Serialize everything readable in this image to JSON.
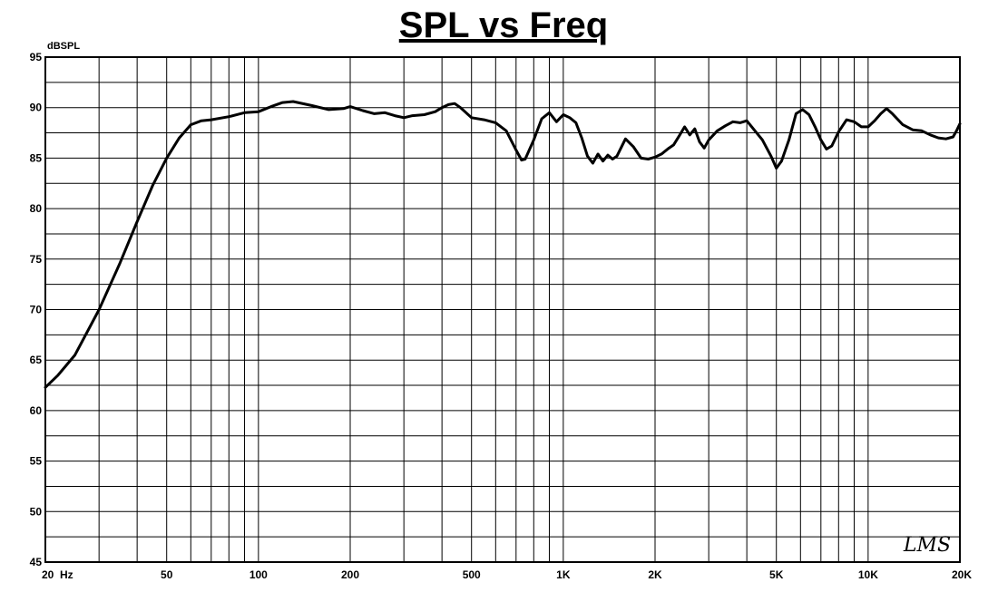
{
  "chart_data": {
    "type": "line",
    "title": "SPL vs Freq",
    "ylabel": "dBSPL",
    "xlabel": "",
    "x_scale": "log",
    "xlim": [
      20,
      20000
    ],
    "ylim": [
      45,
      95
    ],
    "grid": true,
    "x_tick_labels": [
      {
        "value": 20,
        "label": "20  Hz"
      },
      {
        "value": 50,
        "label": "50"
      },
      {
        "value": 100,
        "label": "100"
      },
      {
        "value": 200,
        "label": "200"
      },
      {
        "value": 500,
        "label": "500"
      },
      {
        "value": 1000,
        "label": "1K"
      },
      {
        "value": 2000,
        "label": "2K"
      },
      {
        "value": 5000,
        "label": "5K"
      },
      {
        "value": 10000,
        "label": "10K"
      },
      {
        "value": 20000,
        "label": "20K"
      }
    ],
    "y_ticks": [
      95,
      90,
      85,
      80,
      75,
      70,
      65,
      60,
      55,
      50,
      45
    ],
    "watermark": "LMS",
    "series": [
      {
        "color": "#000000",
        "x": [
          20,
          22,
          25,
          30,
          35,
          40,
          45,
          50,
          55,
          60,
          65,
          70,
          80,
          90,
          100,
          110,
          120,
          130,
          150,
          170,
          190,
          200,
          220,
          240,
          260,
          280,
          300,
          320,
          350,
          380,
          400,
          420,
          440,
          460,
          500,
          550,
          600,
          650,
          700,
          730,
          750,
          800,
          850,
          900,
          950,
          1000,
          1050,
          1100,
          1150,
          1200,
          1250,
          1300,
          1350,
          1400,
          1450,
          1500,
          1600,
          1700,
          1800,
          1900,
          2000,
          2100,
          2200,
          2300,
          2400,
          2500,
          2600,
          2700,
          2800,
          2900,
          3000,
          3200,
          3400,
          3600,
          3800,
          4000,
          4200,
          4500,
          4800,
          5000,
          5200,
          5500,
          5800,
          6100,
          6400,
          6700,
          7000,
          7300,
          7600,
          8000,
          8500,
          9000,
          9500,
          10000,
          10500,
          11000,
          11500,
          12000,
          13000,
          14000,
          15000,
          16000,
          17000,
          18000,
          19000,
          19500,
          20000
        ],
        "y": [
          62.3,
          63.5,
          65.5,
          70.0,
          74.5,
          78.7,
          82.3,
          85.0,
          87.0,
          88.3,
          88.7,
          88.8,
          89.1,
          89.5,
          89.6,
          90.1,
          90.5,
          90.6,
          90.2,
          89.8,
          89.9,
          90.1,
          89.7,
          89.4,
          89.5,
          89.2,
          89.0,
          89.2,
          89.3,
          89.6,
          90.0,
          90.3,
          90.4,
          90.0,
          89.0,
          88.8,
          88.5,
          87.7,
          85.8,
          84.8,
          84.9,
          86.8,
          88.9,
          89.5,
          88.6,
          89.3,
          89.0,
          88.5,
          87.0,
          85.2,
          84.5,
          85.4,
          84.7,
          85.3,
          84.9,
          85.2,
          86.9,
          86.1,
          85.0,
          84.9,
          85.1,
          85.4,
          85.9,
          86.3,
          87.2,
          88.1,
          87.3,
          87.9,
          86.6,
          86.0,
          86.8,
          87.7,
          88.2,
          88.6,
          88.5,
          88.7,
          87.9,
          86.8,
          85.2,
          84.0,
          84.7,
          86.8,
          89.4,
          89.8,
          89.3,
          88.1,
          86.8,
          85.9,
          86.2,
          87.6,
          88.8,
          88.6,
          88.1,
          88.1,
          88.7,
          89.4,
          89.9,
          89.4,
          88.3,
          87.8,
          87.7,
          87.3,
          87.0,
          86.9,
          87.1,
          87.7,
          88.4
        ]
      }
    ]
  }
}
